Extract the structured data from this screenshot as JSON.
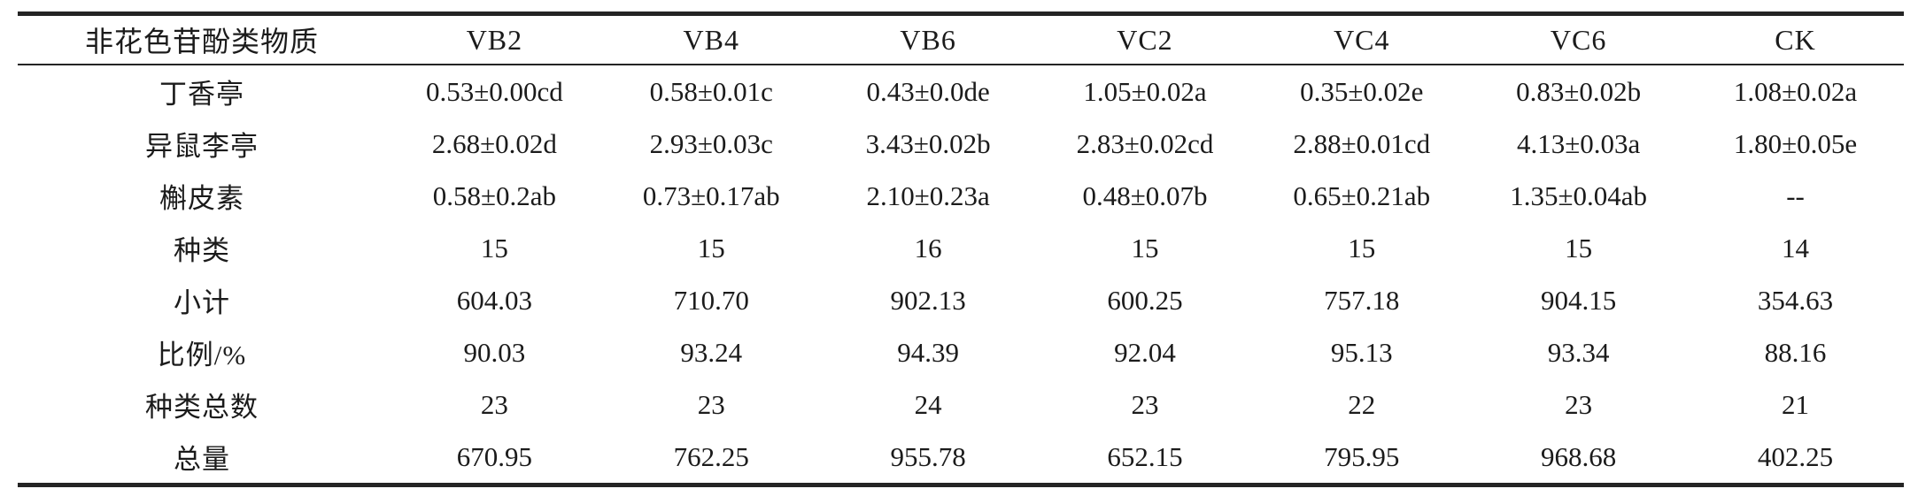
{
  "colors": {
    "background": "#ffffff",
    "text": "#1b1b1b",
    "rule": "#242424"
  },
  "table": {
    "columns": [
      "非花色苷酚类物质",
      "VB2",
      "VB4",
      "VB6",
      "VC2",
      "VC4",
      "VC6",
      "CK"
    ],
    "rows": [
      {
        "label": "丁香亭",
        "values": [
          "0.53±0.00cd",
          "0.58±0.01c",
          "0.43±0.0de",
          "1.05±0.02a",
          "0.35±0.02e",
          "0.83±0.02b",
          "1.08±0.02a"
        ]
      },
      {
        "label": "异鼠李亭",
        "values": [
          "2.68±0.02d",
          "2.93±0.03c",
          "3.43±0.02b",
          "2.83±0.02cd",
          "2.88±0.01cd",
          "4.13±0.03a",
          "1.80±0.05e"
        ]
      },
      {
        "label": "槲皮素",
        "values": [
          "0.58±0.2ab",
          "0.73±0.17ab",
          "2.10±0.23a",
          "0.48±0.07b",
          "0.65±0.21ab",
          "1.35±0.04ab",
          "--"
        ]
      },
      {
        "label": "种类",
        "values": [
          "15",
          "15",
          "16",
          "15",
          "15",
          "15",
          "14"
        ]
      },
      {
        "label": "小计",
        "values": [
          "604.03",
          "710.70",
          "902.13",
          "600.25",
          "757.18",
          "904.15",
          "354.63"
        ]
      },
      {
        "label": "比例/%",
        "values": [
          "90.03",
          "93.24",
          "94.39",
          "92.04",
          "95.13",
          "93.34",
          "88.16"
        ]
      },
      {
        "label": "种类总数",
        "values": [
          "23",
          "23",
          "24",
          "23",
          "22",
          "23",
          "21"
        ]
      },
      {
        "label": "总量",
        "values": [
          "670.95",
          "762.25",
          "955.78",
          "652.15",
          "795.95",
          "968.68",
          "402.25"
        ]
      }
    ]
  }
}
